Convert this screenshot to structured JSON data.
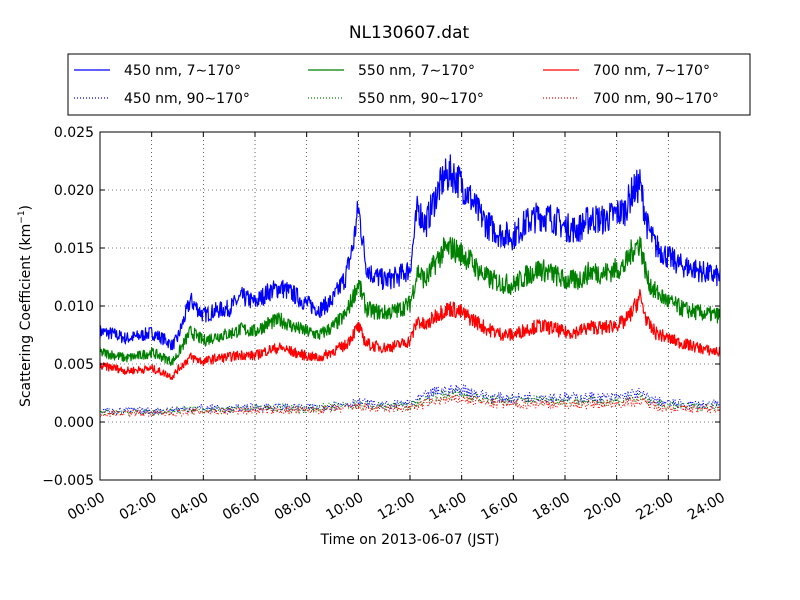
{
  "chart_data": {
    "type": "line",
    "title": "NL130607.dat",
    "xlabel": "Time on 2013-06-07 (JST)",
    "ylabel": "Scattering Coefficient (km",
    "ylabel_sup": "−1",
    "ylabel_close": ")",
    "xlim": [
      0,
      24
    ],
    "ylim": [
      -0.005,
      0.025
    ],
    "x_ticks": [
      0,
      2,
      4,
      6,
      8,
      10,
      12,
      14,
      16,
      18,
      20,
      22,
      24
    ],
    "x_tick_labels": [
      "00:00",
      "02:00",
      "04:00",
      "06:00",
      "08:00",
      "10:00",
      "12:00",
      "14:00",
      "16:00",
      "18:00",
      "20:00",
      "22:00",
      "24:00"
    ],
    "y_ticks": [
      -0.005,
      0.0,
      0.005,
      0.01,
      0.015,
      0.02,
      0.025
    ],
    "y_tick_labels": [
      "−0.005",
      "0.000",
      "0.005",
      "0.010",
      "0.015",
      "0.020",
      "0.025"
    ],
    "grid": true,
    "legend_position": "top",
    "legend_columns": 3,
    "series": [
      {
        "name": "450 nm, 7∼170°",
        "color": "#0000ff",
        "style": "solid",
        "x": [
          0,
          0.5,
          1,
          1.5,
          2,
          2.5,
          2.8,
          3,
          3.5,
          4,
          4.5,
          5,
          5.5,
          6,
          6.5,
          7,
          7.5,
          8,
          8.5,
          9,
          9.5,
          9.8,
          10,
          10.3,
          10.5,
          11,
          11.5,
          12,
          12.3,
          12.6,
          13,
          13.3,
          13.6,
          14,
          14.3,
          14.6,
          15,
          15.5,
          16,
          16.5,
          17,
          17.5,
          18,
          18.5,
          19,
          19.5,
          20,
          20.3,
          20.6,
          20.9,
          21.2,
          21.5,
          22,
          22.5,
          23,
          23.5,
          24
        ],
        "y": [
          0.0078,
          0.0076,
          0.0072,
          0.0074,
          0.0077,
          0.0071,
          0.0066,
          0.0072,
          0.0105,
          0.0092,
          0.0096,
          0.0098,
          0.0108,
          0.0103,
          0.0112,
          0.0116,
          0.011,
          0.0102,
          0.0097,
          0.0105,
          0.0125,
          0.0152,
          0.0185,
          0.0135,
          0.0128,
          0.0122,
          0.0125,
          0.0132,
          0.0185,
          0.017,
          0.0195,
          0.021,
          0.0215,
          0.0205,
          0.0195,
          0.0182,
          0.017,
          0.0162,
          0.016,
          0.0172,
          0.0178,
          0.0176,
          0.0168,
          0.0166,
          0.0176,
          0.0174,
          0.018,
          0.0182,
          0.0198,
          0.0205,
          0.0168,
          0.0152,
          0.0142,
          0.0135,
          0.0132,
          0.0128,
          0.0125
        ]
      },
      {
        "name": "550 nm, 7∼170°",
        "color": "#008000",
        "style": "solid",
        "x": [
          0,
          0.5,
          1,
          1.5,
          2,
          2.5,
          2.8,
          3,
          3.5,
          4,
          4.5,
          5,
          5.5,
          6,
          6.5,
          7,
          7.5,
          8,
          8.5,
          9,
          9.5,
          9.8,
          10,
          10.3,
          10.5,
          11,
          11.5,
          12,
          12.3,
          12.6,
          13,
          13.3,
          13.6,
          14,
          14.3,
          14.6,
          15,
          15.5,
          16,
          16.5,
          17,
          17.5,
          18,
          18.5,
          19,
          19.5,
          20,
          20.3,
          20.6,
          20.9,
          21.2,
          21.5,
          22,
          22.5,
          23,
          23.5,
          24
        ],
        "y": [
          0.006,
          0.0058,
          0.0055,
          0.0057,
          0.006,
          0.0055,
          0.0052,
          0.0058,
          0.0078,
          0.007,
          0.0074,
          0.0076,
          0.008,
          0.0078,
          0.0085,
          0.0088,
          0.0082,
          0.0078,
          0.0075,
          0.0082,
          0.0092,
          0.0108,
          0.012,
          0.0098,
          0.0096,
          0.0094,
          0.0096,
          0.0102,
          0.013,
          0.0122,
          0.0138,
          0.0148,
          0.015,
          0.0145,
          0.014,
          0.0132,
          0.0124,
          0.012,
          0.0118,
          0.0126,
          0.0132,
          0.0128,
          0.0122,
          0.0122,
          0.013,
          0.0128,
          0.0132,
          0.0134,
          0.0148,
          0.0155,
          0.0122,
          0.0112,
          0.0104,
          0.0098,
          0.0095,
          0.0093,
          0.0092
        ]
      },
      {
        "name": "700 nm, 7∼170°",
        "color": "#ff0000",
        "style": "solid",
        "x": [
          0,
          0.5,
          1,
          1.5,
          2,
          2.5,
          2.8,
          3,
          3.5,
          4,
          4.5,
          5,
          5.5,
          6,
          6.5,
          7,
          7.5,
          8,
          8.5,
          9,
          9.5,
          9.8,
          10,
          10.3,
          10.5,
          11,
          11.5,
          12,
          12.3,
          12.6,
          13,
          13.3,
          13.6,
          14,
          14.3,
          14.6,
          15,
          15.5,
          16,
          16.5,
          17,
          17.5,
          18,
          18.5,
          19,
          19.5,
          20,
          20.3,
          20.6,
          20.9,
          21.2,
          21.5,
          22,
          22.5,
          23,
          23.5,
          24
        ],
        "y": [
          0.0048,
          0.0047,
          0.0044,
          0.0045,
          0.0046,
          0.0042,
          0.0039,
          0.0045,
          0.0056,
          0.0052,
          0.0055,
          0.0056,
          0.0058,
          0.0057,
          0.0062,
          0.0064,
          0.006,
          0.0057,
          0.0055,
          0.0061,
          0.0066,
          0.0076,
          0.0082,
          0.0068,
          0.0066,
          0.0064,
          0.0066,
          0.007,
          0.0088,
          0.0082,
          0.0092,
          0.0096,
          0.0098,
          0.0094,
          0.009,
          0.0086,
          0.008,
          0.0076,
          0.0075,
          0.008,
          0.0083,
          0.0081,
          0.0077,
          0.0078,
          0.0082,
          0.0081,
          0.0084,
          0.0086,
          0.0095,
          0.0108,
          0.0085,
          0.0077,
          0.0072,
          0.0068,
          0.0065,
          0.0062,
          0.006
        ]
      },
      {
        "name": "450 nm, 90∼170°",
        "color": "#0000ff",
        "style": "dotted",
        "x": [
          0,
          1,
          2,
          3,
          4,
          5,
          6,
          7,
          8,
          9,
          10,
          11,
          12,
          13,
          14,
          15,
          16,
          17,
          18,
          19,
          20,
          20.8,
          21.5,
          22,
          23,
          24
        ],
        "y": [
          0.0009,
          0.001,
          0.0009,
          0.0011,
          0.0012,
          0.0011,
          0.0013,
          0.0013,
          0.0012,
          0.0014,
          0.0017,
          0.0014,
          0.0016,
          0.0026,
          0.0028,
          0.0022,
          0.002,
          0.0022,
          0.0021,
          0.0021,
          0.0021,
          0.0025,
          0.0018,
          0.0016,
          0.0015,
          0.0015
        ]
      },
      {
        "name": "550 nm, 90∼170°",
        "color": "#008000",
        "style": "dotted",
        "x": [
          0,
          1,
          2,
          3,
          4,
          5,
          6,
          7,
          8,
          9,
          10,
          11,
          12,
          13,
          14,
          15,
          16,
          17,
          18,
          19,
          20,
          20.8,
          21.5,
          22,
          23,
          24
        ],
        "y": [
          0.0008,
          0.0009,
          0.0008,
          0.001,
          0.0011,
          0.001,
          0.0012,
          0.0012,
          0.0011,
          0.0013,
          0.0015,
          0.0013,
          0.0014,
          0.0022,
          0.0024,
          0.0019,
          0.0018,
          0.0019,
          0.0018,
          0.0018,
          0.0018,
          0.0021,
          0.0016,
          0.0014,
          0.0013,
          0.0013
        ]
      },
      {
        "name": "700 nm, 90∼170°",
        "color": "#ff0000",
        "style": "dotted",
        "x": [
          0,
          1,
          2,
          3,
          4,
          5,
          6,
          7,
          8,
          9,
          10,
          11,
          12,
          13,
          14,
          15,
          16,
          17,
          18,
          19,
          20,
          20.8,
          21.5,
          22,
          23,
          24
        ],
        "y": [
          0.0007,
          0.0008,
          0.0007,
          0.0008,
          0.0009,
          0.0009,
          0.001,
          0.001,
          0.001,
          0.0011,
          0.0013,
          0.0011,
          0.0012,
          0.0018,
          0.002,
          0.0016,
          0.0015,
          0.0016,
          0.0015,
          0.0015,
          0.0016,
          0.0018,
          0.0014,
          0.0012,
          0.0011,
          0.0011
        ]
      }
    ]
  }
}
